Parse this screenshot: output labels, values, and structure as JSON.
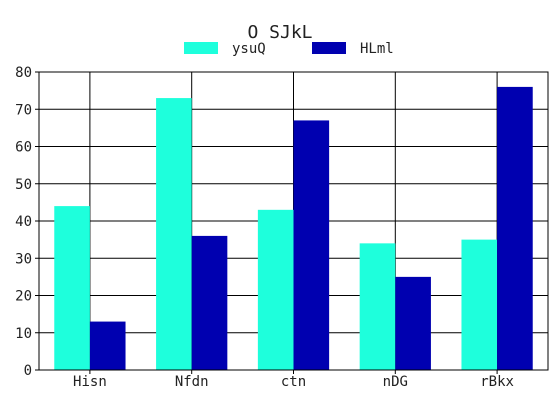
{
  "chart_data": {
    "type": "bar",
    "title": "O SJkL",
    "xlabel": "",
    "ylabel": "",
    "categories": [
      "Hisn",
      "Nfdn",
      "ctn",
      "nDG",
      "rBkx"
    ],
    "series": [
      {
        "name": "ysuQ",
        "color": "#1effdc",
        "values": [
          44,
          73,
          43,
          34,
          35
        ]
      },
      {
        "name": "HLml",
        "color": "#0000b0",
        "values": [
          13,
          36,
          67,
          25,
          76
        ]
      }
    ],
    "ylim": [
      0,
      80
    ],
    "yticks": [
      0,
      10,
      20,
      30,
      40,
      50,
      60,
      70,
      80
    ],
    "grid": true,
    "legend_position": "top-center"
  }
}
